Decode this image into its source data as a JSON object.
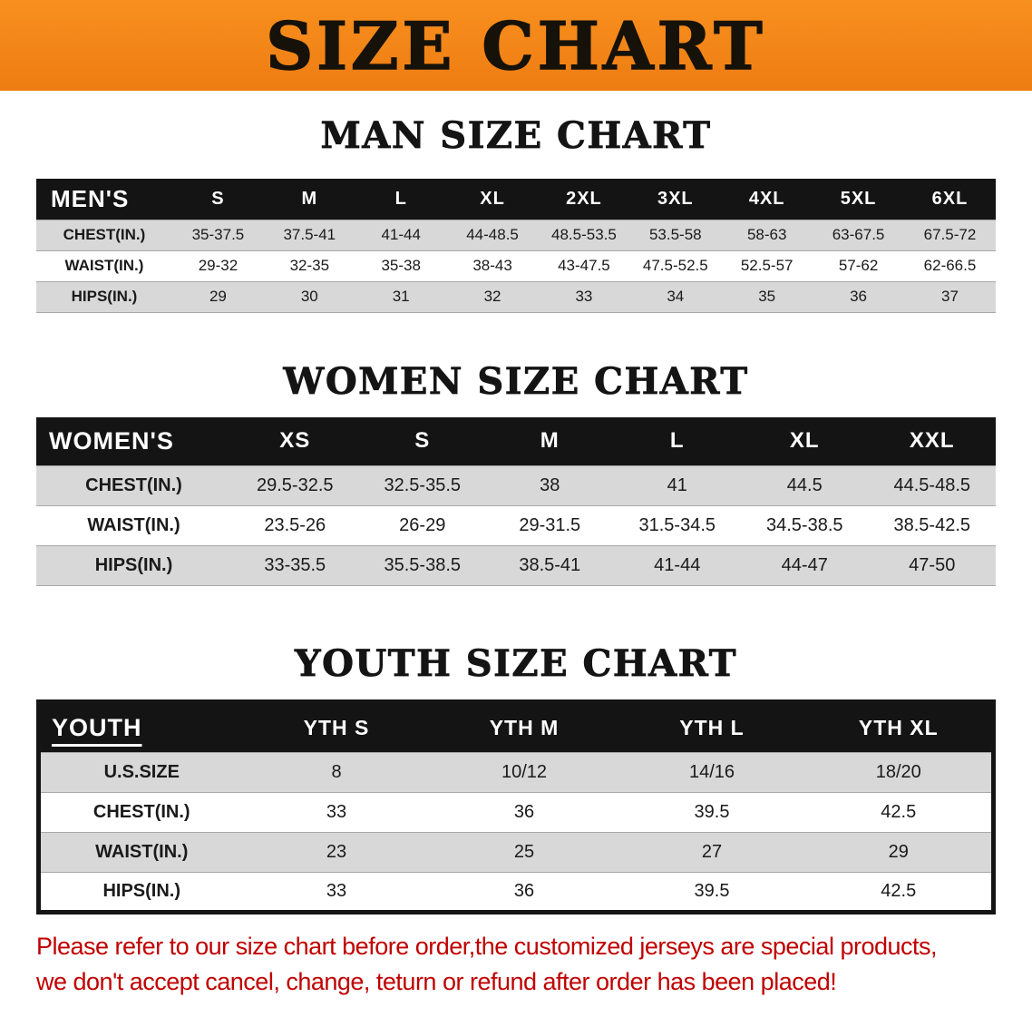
{
  "banner": {
    "title": "SIZE CHART"
  },
  "colors": {
    "banner_orange": "#f6871f",
    "table_header_black": "#141414",
    "stripe_gray": "#d8d8d8",
    "note_red": "#c00000"
  },
  "men": {
    "heading": "MAN SIZE CHART",
    "header": [
      "MEN'S",
      "S",
      "M",
      "L",
      "XL",
      "2XL",
      "3XL",
      "4XL",
      "5XL",
      "6XL"
    ],
    "rows": [
      [
        "CHEST(IN.)",
        "35-37.5",
        "37.5-41",
        "41-44",
        "44-48.5",
        "48.5-53.5",
        "53.5-58",
        "58-63",
        "63-67.5",
        "67.5-72"
      ],
      [
        "WAIST(IN.)",
        "29-32",
        "32-35",
        "35-38",
        "38-43",
        "43-47.5",
        "47.5-52.5",
        "52.5-57",
        "57-62",
        "62-66.5"
      ],
      [
        "HIPS(IN.)",
        "29",
        "30",
        "31",
        "32",
        "33",
        "34",
        "35",
        "36",
        "37"
      ]
    ]
  },
  "women": {
    "heading": "WOMEN SIZE CHART",
    "header": [
      "WOMEN'S",
      "XS",
      "S",
      "M",
      "L",
      "XL",
      "XXL"
    ],
    "rows": [
      [
        "CHEST(IN.)",
        "29.5-32.5",
        "32.5-35.5",
        "38",
        "41",
        "44.5",
        "44.5-48.5"
      ],
      [
        "WAIST(IN.)",
        "23.5-26",
        "26-29",
        "29-31.5",
        "31.5-34.5",
        "34.5-38.5",
        "38.5-42.5"
      ],
      [
        "HIPS(IN.)",
        "33-35.5",
        "35.5-38.5",
        "38.5-41",
        "41-44",
        "44-47",
        "47-50"
      ]
    ]
  },
  "youth": {
    "heading": "YOUTH SIZE CHART",
    "header": [
      "YOUTH",
      "YTH S",
      "YTH M",
      "YTH L",
      "YTH XL"
    ],
    "rows": [
      [
        "U.S.SIZE",
        "8",
        "10/12",
        "14/16",
        "18/20"
      ],
      [
        "CHEST(IN.)",
        "33",
        "36",
        "39.5",
        "42.5"
      ],
      [
        "WAIST(IN.)",
        "23",
        "25",
        "27",
        "29"
      ],
      [
        "HIPS(IN.)",
        "33",
        "36",
        "39.5",
        "42.5"
      ]
    ]
  },
  "note": {
    "line1": "Please refer to our size chart before order,the customized jerseys are special products,",
    "line2": "we don't accept cancel, change, teturn or refund after order has been placed!"
  }
}
